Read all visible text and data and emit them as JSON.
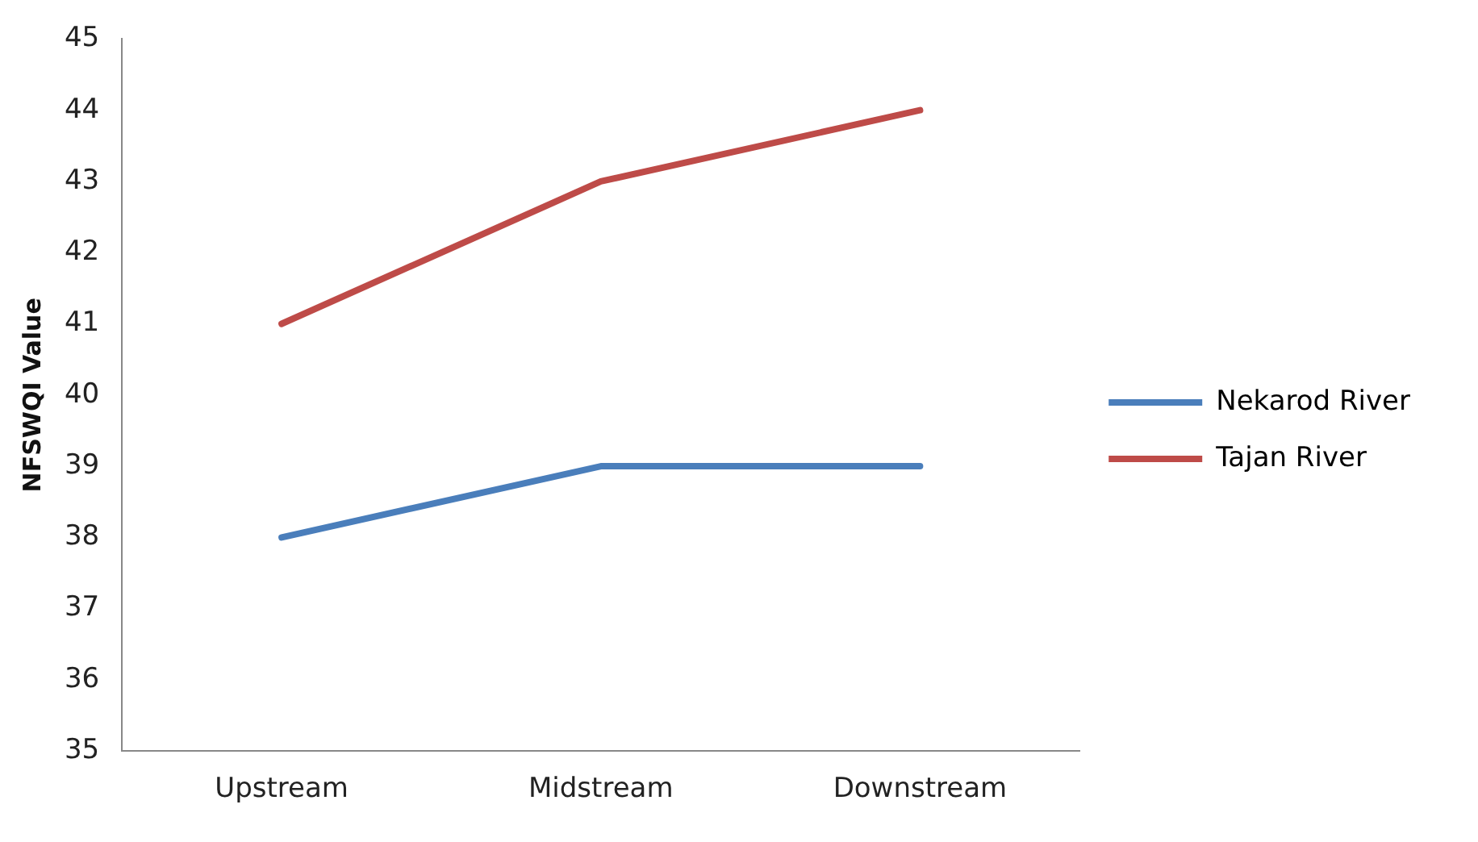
{
  "chart_data": {
    "type": "line",
    "ylabel": "NFSWQI Value",
    "categories": [
      "Upstream",
      "Midstream",
      "Downstream"
    ],
    "series": [
      {
        "name": "Nekarod River",
        "color": "#4a7ebb",
        "values": [
          38,
          39,
          39
        ]
      },
      {
        "name": "Tajan River",
        "color": "#be4b48",
        "values": [
          41,
          43,
          44
        ]
      }
    ],
    "ylim": [
      35,
      45
    ],
    "yticks": [
      35,
      36,
      37,
      38,
      39,
      40,
      41,
      42,
      43,
      44,
      45
    ],
    "grid": false,
    "legend": "right",
    "marker": "none",
    "line_style": "solid"
  }
}
